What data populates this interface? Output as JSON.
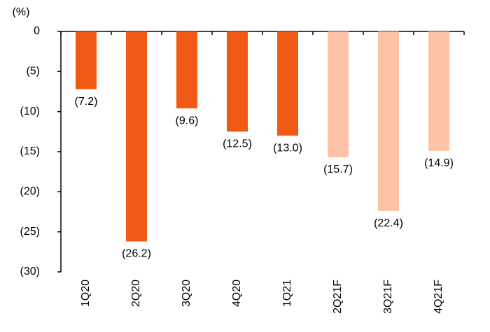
{
  "chart_data": {
    "type": "bar",
    "y_unit_label": "(%)",
    "categories": [
      "1Q20",
      "2Q20",
      "3Q20",
      "4Q20",
      "1Q21",
      "2Q21F",
      "3Q21F",
      "4Q21F"
    ],
    "values": [
      -7.2,
      -26.2,
      -9.6,
      -12.5,
      -13.0,
      -15.7,
      -22.4,
      -14.9
    ],
    "value_labels": [
      "(7.2)",
      "(26.2)",
      "(9.6)",
      "(12.5)",
      "(13.0)",
      "(15.7)",
      "(22.4)",
      "(14.9)"
    ],
    "colors": [
      "#f05a14",
      "#f05a14",
      "#f05a14",
      "#f05a14",
      "#f05a14",
      "#fcc3a6",
      "#fcc3a6",
      "#fcc3a6"
    ],
    "ylim": [
      -30,
      0
    ],
    "yticks": [
      0,
      {
        "value": -5,
        "label": "(5)"
      },
      {
        "value": -10,
        "label": "(10)"
      },
      {
        "value": -15,
        "label": "(15)"
      },
      {
        "value": -20,
        "label": "(20)"
      },
      {
        "value": -25,
        "label": "(25)"
      },
      {
        "value": -30,
        "label": "(30)"
      }
    ],
    "grid": false
  }
}
